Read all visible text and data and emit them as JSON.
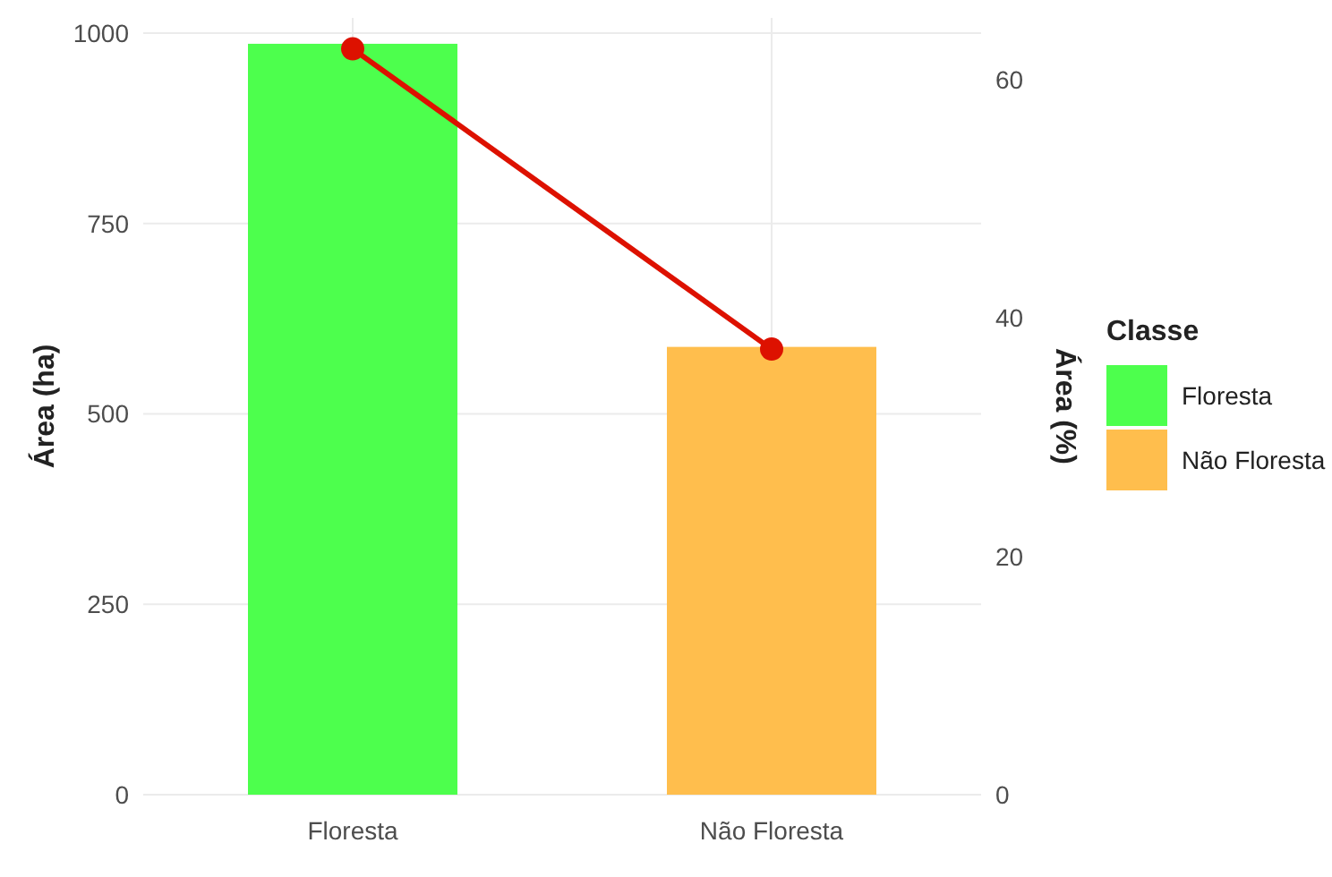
{
  "chart_data": {
    "type": "bar",
    "categories": [
      "Floresta",
      "Não Floresta"
    ],
    "series": [
      {
        "name": "Floresta",
        "values": [
          986,
          null
        ],
        "color": "#4dff4d"
      },
      {
        "name": "Não Floresta",
        "values": [
          null,
          588
        ],
        "color": "#ffbe4d"
      },
      {
        "type": "line",
        "axis": "y2",
        "values": [
          62.6,
          37.4
        ],
        "color": "#dd1100"
      }
    ],
    "ylabel": "Área (ha)",
    "y2label": "Área (%)",
    "legend_title": "Classe",
    "ylim": [
      0,
      1020
    ],
    "yticks": [
      0,
      250,
      500,
      750,
      1000
    ],
    "y2lim": [
      0,
      65.2
    ],
    "y2ticks": [
      0,
      20,
      40,
      60
    ],
    "grid": true,
    "legend": "right",
    "marker": "circle"
  }
}
